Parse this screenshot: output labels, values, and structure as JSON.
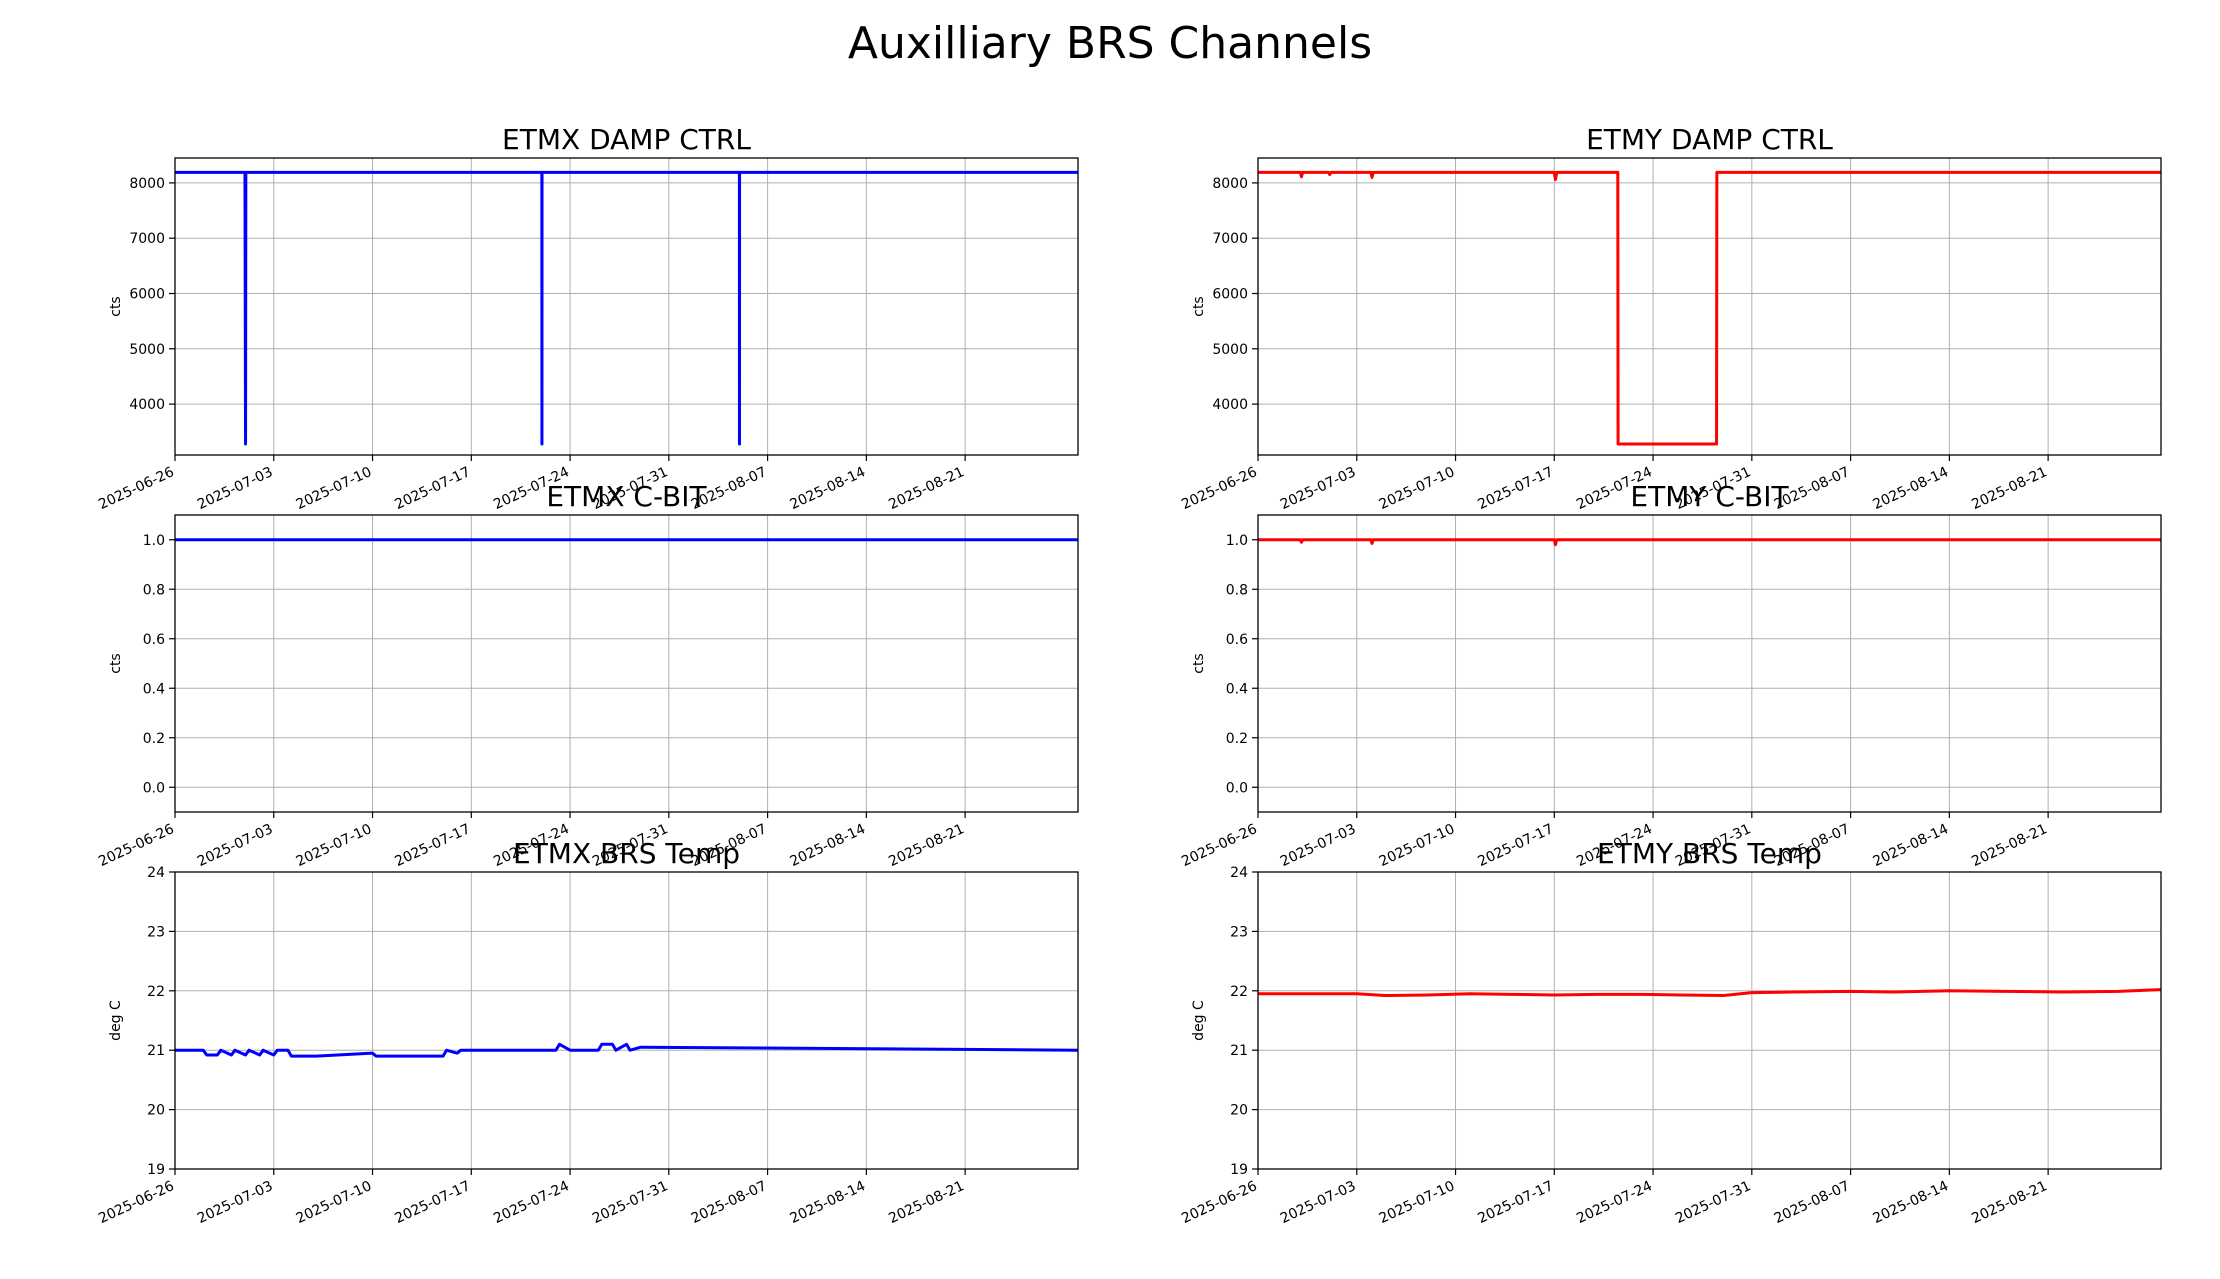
{
  "figure": {
    "title": "Auxilliary BRS Channels"
  },
  "chart_data": [
    {
      "type": "line",
      "id": "etmx-damp",
      "title": "ETMX DAMP CTRL",
      "xlabel": "",
      "ylabel": "cts",
      "color": "#0000ff",
      "grid": true,
      "xlim": [
        "2025-06-26",
        "2025-08-29"
      ],
      "xticks": [
        "2025-06-26",
        "2025-07-03",
        "2025-07-10",
        "2025-07-17",
        "2025-07-24",
        "2025-07-31",
        "2025-08-07",
        "2025-08-14",
        "2025-08-21"
      ],
      "ylim": [
        3080,
        8450
      ],
      "yticks": [
        "4000",
        "5000",
        "6000",
        "7000",
        "8000"
      ],
      "x": [
        "2025-06-26",
        "2025-06-30T23:00",
        "2025-06-31",
        "2025-07-01T00:30",
        "2025-07-22T00:00",
        "2025-07-22T00:10",
        "2025-07-22T00:20",
        "2025-08-05T00:00",
        "2025-08-05T00:10",
        "2025-08-05T00:20",
        "2025-08-29"
      ],
      "y": [
        8190,
        8190,
        3280,
        8190,
        8190,
        3280,
        8190,
        8190,
        3280,
        8190,
        8190
      ]
    },
    {
      "type": "line",
      "id": "etmy-damp",
      "title": "ETMY DAMP CTRL",
      "xlabel": "",
      "ylabel": "cts",
      "color": "#ff0000",
      "grid": true,
      "xlim": [
        "2025-06-26",
        "2025-08-29"
      ],
      "xticks": [
        "2025-06-26",
        "2025-07-03",
        "2025-07-10",
        "2025-07-17",
        "2025-07-24",
        "2025-07-31",
        "2025-08-07",
        "2025-08-14",
        "2025-08-21"
      ],
      "ylim": [
        3080,
        8450
      ],
      "yticks": [
        "4000",
        "5000",
        "6000",
        "7000",
        "8000"
      ],
      "x": [
        "2025-06-26",
        "2025-06-29",
        "2025-06-29T02:00",
        "2025-06-29T04:00",
        "2025-07-01",
        "2025-07-01T02:00",
        "2025-07-01T04:00",
        "2025-07-04",
        "2025-07-04T02:00",
        "2025-07-04T04:00",
        "2025-07-17",
        "2025-07-17T02:00",
        "2025-07-17T04:00",
        "2025-07-21T12:00",
        "2025-07-21T12:30",
        "2025-07-28T12:00",
        "2025-07-28T12:30",
        "2025-08-29"
      ],
      "y": [
        8190,
        8190,
        8110,
        8190,
        8190,
        8150,
        8190,
        8190,
        8100,
        8190,
        8190,
        8060,
        8190,
        8190,
        3280,
        3280,
        8190,
        8190
      ]
    },
    {
      "type": "line",
      "id": "etmx-cbit",
      "title": "ETMX C-BIT",
      "xlabel": "",
      "ylabel": "cts",
      "color": "#0000ff",
      "grid": true,
      "xlim": [
        "2025-06-26",
        "2025-08-29"
      ],
      "xticks": [
        "2025-06-26",
        "2025-07-03",
        "2025-07-10",
        "2025-07-17",
        "2025-07-24",
        "2025-07-31",
        "2025-08-07",
        "2025-08-14",
        "2025-08-21"
      ],
      "ylim": [
        -0.1,
        1.1
      ],
      "yticks": [
        "0.0",
        "0.2",
        "0.4",
        "0.6",
        "0.8",
        "1.0"
      ],
      "x": [
        "2025-06-26",
        "2025-08-29"
      ],
      "y": [
        1.0,
        1.0
      ]
    },
    {
      "type": "line",
      "id": "etmy-cbit",
      "title": "ETMY C-BIT",
      "xlabel": "",
      "ylabel": "cts",
      "color": "#ff0000",
      "grid": true,
      "xlim": [
        "2025-06-26",
        "2025-08-29"
      ],
      "xticks": [
        "2025-06-26",
        "2025-07-03",
        "2025-07-10",
        "2025-07-17",
        "2025-07-24",
        "2025-07-31",
        "2025-08-07",
        "2025-08-14",
        "2025-08-21"
      ],
      "ylim": [
        -0.1,
        1.1
      ],
      "yticks": [
        "0.0",
        "0.2",
        "0.4",
        "0.6",
        "0.8",
        "1.0"
      ],
      "x": [
        "2025-06-26",
        "2025-06-29",
        "2025-06-29T02:00",
        "2025-06-29T04:00",
        "2025-07-04",
        "2025-07-04T02:00",
        "2025-07-04T04:00",
        "2025-07-17",
        "2025-07-17T02:00",
        "2025-07-17T04:00",
        "2025-08-29"
      ],
      "y": [
        1.0,
        1.0,
        0.99,
        1.0,
        1.0,
        0.985,
        1.0,
        1.0,
        0.98,
        1.0,
        1.0
      ]
    },
    {
      "type": "line",
      "id": "etmx-temp",
      "title": "ETMX BRS Temp",
      "xlabel": "",
      "ylabel": "deg C",
      "color": "#0000ff",
      "grid": true,
      "xlim": [
        "2025-06-26",
        "2025-08-29"
      ],
      "xticks": [
        "2025-06-26",
        "2025-07-03",
        "2025-07-10",
        "2025-07-17",
        "2025-07-24",
        "2025-07-31",
        "2025-08-07",
        "2025-08-14",
        "2025-08-21"
      ],
      "ylim": [
        19,
        24
      ],
      "yticks": [
        "19",
        "20",
        "21",
        "22",
        "23",
        "24"
      ],
      "x": [
        "2025-06-26",
        "2025-06-28",
        "2025-06-28T06:00",
        "2025-06-29",
        "2025-06-29T06:00",
        "2025-06-30",
        "2025-06-30T06:00",
        "2025-07-01",
        "2025-07-01T06:00",
        "2025-07-02",
        "2025-07-02T06:00",
        "2025-07-03",
        "2025-07-03T06:00",
        "2025-07-04",
        "2025-07-04T06:00",
        "2025-07-05",
        "2025-07-05T06:00",
        "2025-07-06",
        "2025-07-10",
        "2025-07-10T06:00",
        "2025-07-11",
        "2025-07-11T06:00",
        "2025-07-15",
        "2025-07-15T06:00",
        "2025-07-16",
        "2025-07-16T06:00",
        "2025-07-23",
        "2025-07-23T06:00",
        "2025-07-24",
        "2025-07-26",
        "2025-07-26T06:00",
        "2025-07-27",
        "2025-07-27T06:00",
        "2025-07-28",
        "2025-07-28T06:00",
        "2025-07-29",
        "2025-08-29"
      ],
      "y": [
        21.0,
        21.0,
        20.92,
        20.92,
        21.0,
        20.92,
        21.0,
        20.92,
        21.0,
        20.92,
        21.0,
        20.92,
        21.0,
        21.0,
        20.9,
        20.9,
        20.9,
        20.9,
        20.95,
        20.9,
        20.9,
        20.9,
        20.9,
        21.0,
        20.95,
        21.0,
        21.0,
        21.1,
        21.0,
        21.0,
        21.1,
        21.1,
        21.0,
        21.1,
        21.0,
        21.05,
        21.0
      ]
    },
    {
      "type": "line",
      "id": "etmy-temp",
      "title": "ETMY BRS Temp",
      "xlabel": "",
      "ylabel": "deg C",
      "color": "#ff0000",
      "grid": true,
      "xlim": [
        "2025-06-26",
        "2025-08-29"
      ],
      "xticks": [
        "2025-06-26",
        "2025-07-03",
        "2025-07-10",
        "2025-07-17",
        "2025-07-24",
        "2025-07-31",
        "2025-08-07",
        "2025-08-14",
        "2025-08-21"
      ],
      "ylim": [
        19,
        24
      ],
      "yticks": [
        "19",
        "20",
        "21",
        "22",
        "23",
        "24"
      ],
      "x": [
        "2025-06-26",
        "2025-06-30",
        "2025-07-03",
        "2025-07-05",
        "2025-07-08",
        "2025-07-11",
        "2025-07-14",
        "2025-07-17",
        "2025-07-20",
        "2025-07-23",
        "2025-07-26",
        "2025-07-29",
        "2025-07-31",
        "2025-08-03",
        "2025-08-07",
        "2025-08-10",
        "2025-08-14",
        "2025-08-18",
        "2025-08-22",
        "2025-08-26",
        "2025-08-29"
      ],
      "y": [
        21.95,
        21.95,
        21.95,
        21.92,
        21.93,
        21.95,
        21.94,
        21.93,
        21.94,
        21.94,
        21.93,
        21.92,
        21.97,
        21.98,
        21.99,
        21.98,
        22.0,
        21.99,
        21.98,
        21.99,
        22.02
      ]
    }
  ]
}
